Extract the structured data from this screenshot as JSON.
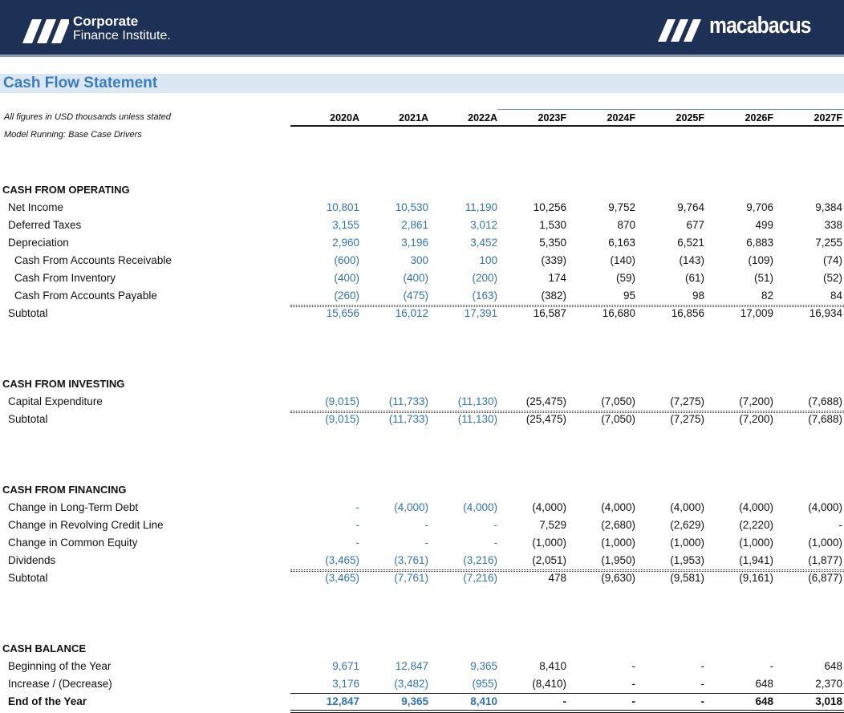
{
  "header": {
    "left_logo_line1": "Corporate",
    "left_logo_line2": "Finance Institute.",
    "right_logo": "macabacus"
  },
  "title": "Cash Flow Statement",
  "notes": [
    "All figures in USD thousands unless stated",
    "Model Running: Base Case Drivers"
  ],
  "columns": [
    "2020A",
    "2021A",
    "2022A",
    "2023F",
    "2024F",
    "2025F",
    "2026F",
    "2027F"
  ],
  "sections": [
    {
      "title": "CASH FROM OPERATING",
      "rows": [
        {
          "label": "Net Income",
          "values": [
            "10,801",
            "10,530",
            "11,190",
            "10,256",
            "9,752",
            "9,764",
            "9,706",
            "9,384"
          ]
        },
        {
          "label": "Deferred Taxes",
          "values": [
            "3,155",
            "2,861",
            "3,012",
            "1,530",
            "870",
            "677",
            "499",
            "338"
          ]
        },
        {
          "label": "Depreciation",
          "values": [
            "2,960",
            "3,196",
            "3,452",
            "5,350",
            "6,163",
            "6,521",
            "6,883",
            "7,255"
          ]
        },
        {
          "label": "Cash From Accounts Receivable",
          "values": [
            "(600)",
            "300",
            "100",
            "(339)",
            "(140)",
            "(143)",
            "(109)",
            "(74)"
          ]
        },
        {
          "label": "Cash From Inventory",
          "values": [
            "(400)",
            "(400)",
            "(200)",
            "174",
            "(59)",
            "(61)",
            "(51)",
            "(52)"
          ]
        },
        {
          "label": "Cash From Accounts Payable",
          "values": [
            "(260)",
            "(475)",
            "(163)",
            "(382)",
            "95",
            "98",
            "82",
            "84"
          ]
        },
        {
          "label": "Subtotal",
          "values": [
            "15,656",
            "16,012",
            "17,391",
            "16,587",
            "16,680",
            "16,856",
            "17,009",
            "16,934"
          ]
        }
      ]
    },
    {
      "title": "CASH FROM INVESTING",
      "rows": [
        {
          "label": "Capital Expenditure",
          "values": [
            "(9,015)",
            "(11,733)",
            "(11,130)",
            "(25,475)",
            "(7,050)",
            "(7,275)",
            "(7,200)",
            "(7,688)"
          ]
        },
        {
          "label": "Subtotal",
          "values": [
            "(9,015)",
            "(11,733)",
            "(11,130)",
            "(25,475)",
            "(7,050)",
            "(7,275)",
            "(7,200)",
            "(7,688)"
          ]
        }
      ]
    },
    {
      "title": "CASH FROM FINANCING",
      "rows": [
        {
          "label": "Change in Long-Term Debt",
          "values": [
            "-",
            "(4,000)",
            "(4,000)",
            "(4,000)",
            "(4,000)",
            "(4,000)",
            "(4,000)",
            "(4,000)"
          ]
        },
        {
          "label": "Change in Revolving Credit Line",
          "values": [
            "-",
            "-",
            "-",
            "7,529",
            "(2,680)",
            "(2,629)",
            "(2,220)",
            "-"
          ]
        },
        {
          "label": "Change in Common Equity",
          "values": [
            "-",
            "-",
            "-",
            "(1,000)",
            "(1,000)",
            "(1,000)",
            "(1,000)",
            "(1,000)"
          ]
        },
        {
          "label": "Dividends",
          "values": [
            "(3,465)",
            "(3,761)",
            "(3,216)",
            "(2,051)",
            "(1,950)",
            "(1,953)",
            "(1,941)",
            "(1,877)"
          ]
        },
        {
          "label": "Subtotal",
          "values": [
            "(3,465)",
            "(7,761)",
            "(7,216)",
            "478",
            "(9,630)",
            "(9,581)",
            "(9,161)",
            "(6,877)"
          ]
        }
      ]
    },
    {
      "title": "CASH BALANCE",
      "rows": [
        {
          "label": "Beginning of the Year",
          "values": [
            "9,671",
            "12,847",
            "9,365",
            "8,410",
            "-",
            "-",
            "-",
            "648"
          ]
        },
        {
          "label": "Increase / (Decrease)",
          "values": [
            "3,176",
            "(3,482)",
            "(955)",
            "(8,410)",
            "-",
            "-",
            "648",
            "2,370"
          ]
        },
        {
          "label": "End of the Year",
          "values": [
            "12,847",
            "9,365",
            "8,410",
            "-",
            "-",
            "-",
            "648",
            "3,018"
          ]
        }
      ]
    }
  ]
}
